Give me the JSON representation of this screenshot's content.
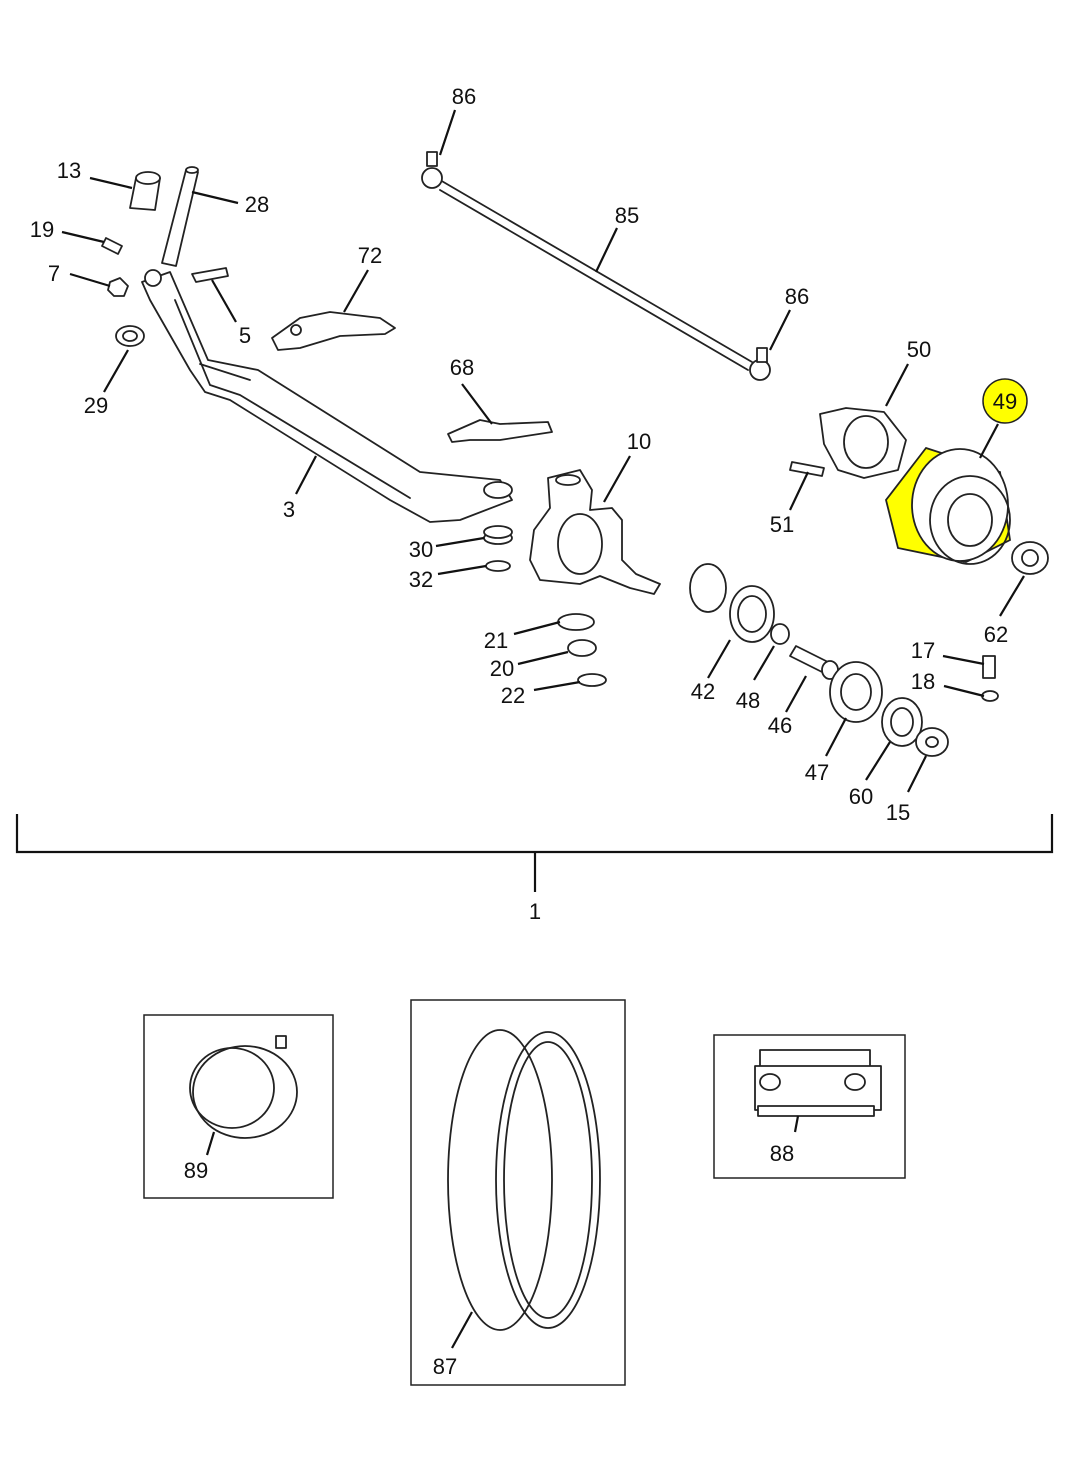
{
  "highlight_color": "#ffff00",
  "callouts": {
    "c1": "1",
    "c3": "3",
    "c5": "5",
    "c7": "7",
    "c10": "10",
    "c13": "13",
    "c15": "15",
    "c17": "17",
    "c18": "18",
    "c19": "19",
    "c20": "20",
    "c21": "21",
    "c22": "22",
    "c28": "28",
    "c29": "29",
    "c30": "30",
    "c32": "32",
    "c42": "42",
    "c46": "46",
    "c47": "47",
    "c48": "48",
    "c49": "49",
    "c50": "50",
    "c51": "51",
    "c60": "60",
    "c62": "62",
    "c68": "68",
    "c72": "72",
    "c85": "85",
    "c86a": "86",
    "c86b": "86",
    "c87": "87",
    "c88": "88",
    "c89": "89"
  },
  "selected_part": "49"
}
